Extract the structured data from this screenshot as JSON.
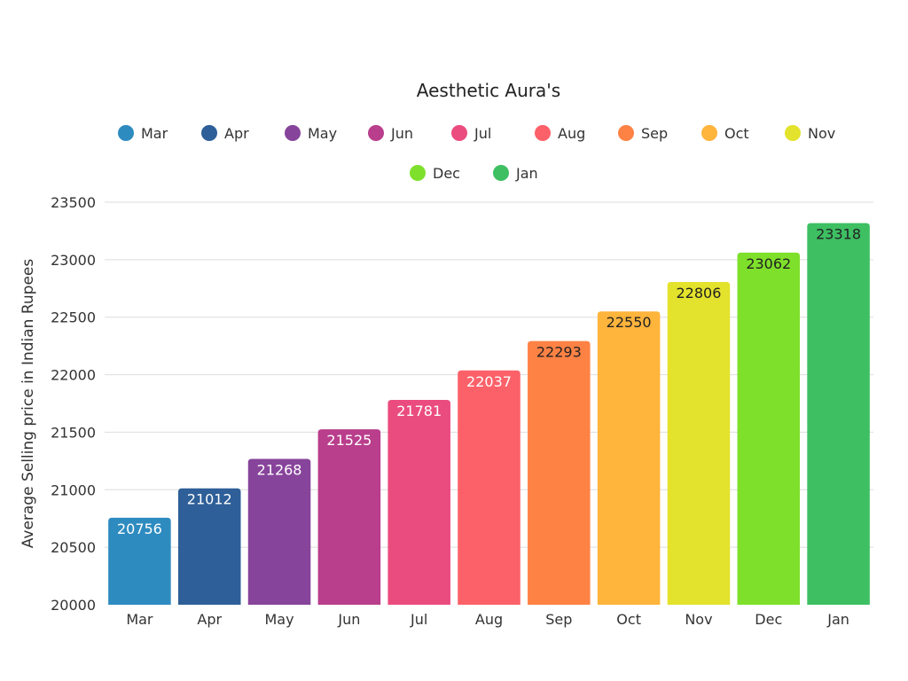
{
  "chart_data": {
    "type": "bar",
    "title": "Aesthetic Aura's",
    "xlabel": "",
    "ylabel": "Average Selling price in Indian Rupees",
    "ylim": [
      20000,
      23500
    ],
    "yticks": [
      20000,
      20500,
      21000,
      21500,
      22000,
      22500,
      23000,
      23500
    ],
    "grid": true,
    "legend_position": "top",
    "categories": [
      "Mar",
      "Apr",
      "May",
      "Jun",
      "Jul",
      "Aug",
      "Sep",
      "Oct",
      "Nov",
      "Dec",
      "Jan"
    ],
    "values": [
      20756,
      21012,
      21268,
      21525,
      21781,
      22037,
      22293,
      22550,
      22806,
      23062,
      23318
    ],
    "colors": [
      "#2e8bc0",
      "#2e5f98",
      "#87449b",
      "#b93e8c",
      "#eb4c7f",
      "#fc6169",
      "#ff8245",
      "#ffb43c",
      "#e3e22c",
      "#7ee02b",
      "#3dbf62"
    ],
    "label_colors": [
      "#ffffff",
      "#ffffff",
      "#ffffff",
      "#ffffff",
      "#ffffff",
      "#ffffff",
      "#222222",
      "#222222",
      "#222222",
      "#222222",
      "#222222"
    ]
  }
}
